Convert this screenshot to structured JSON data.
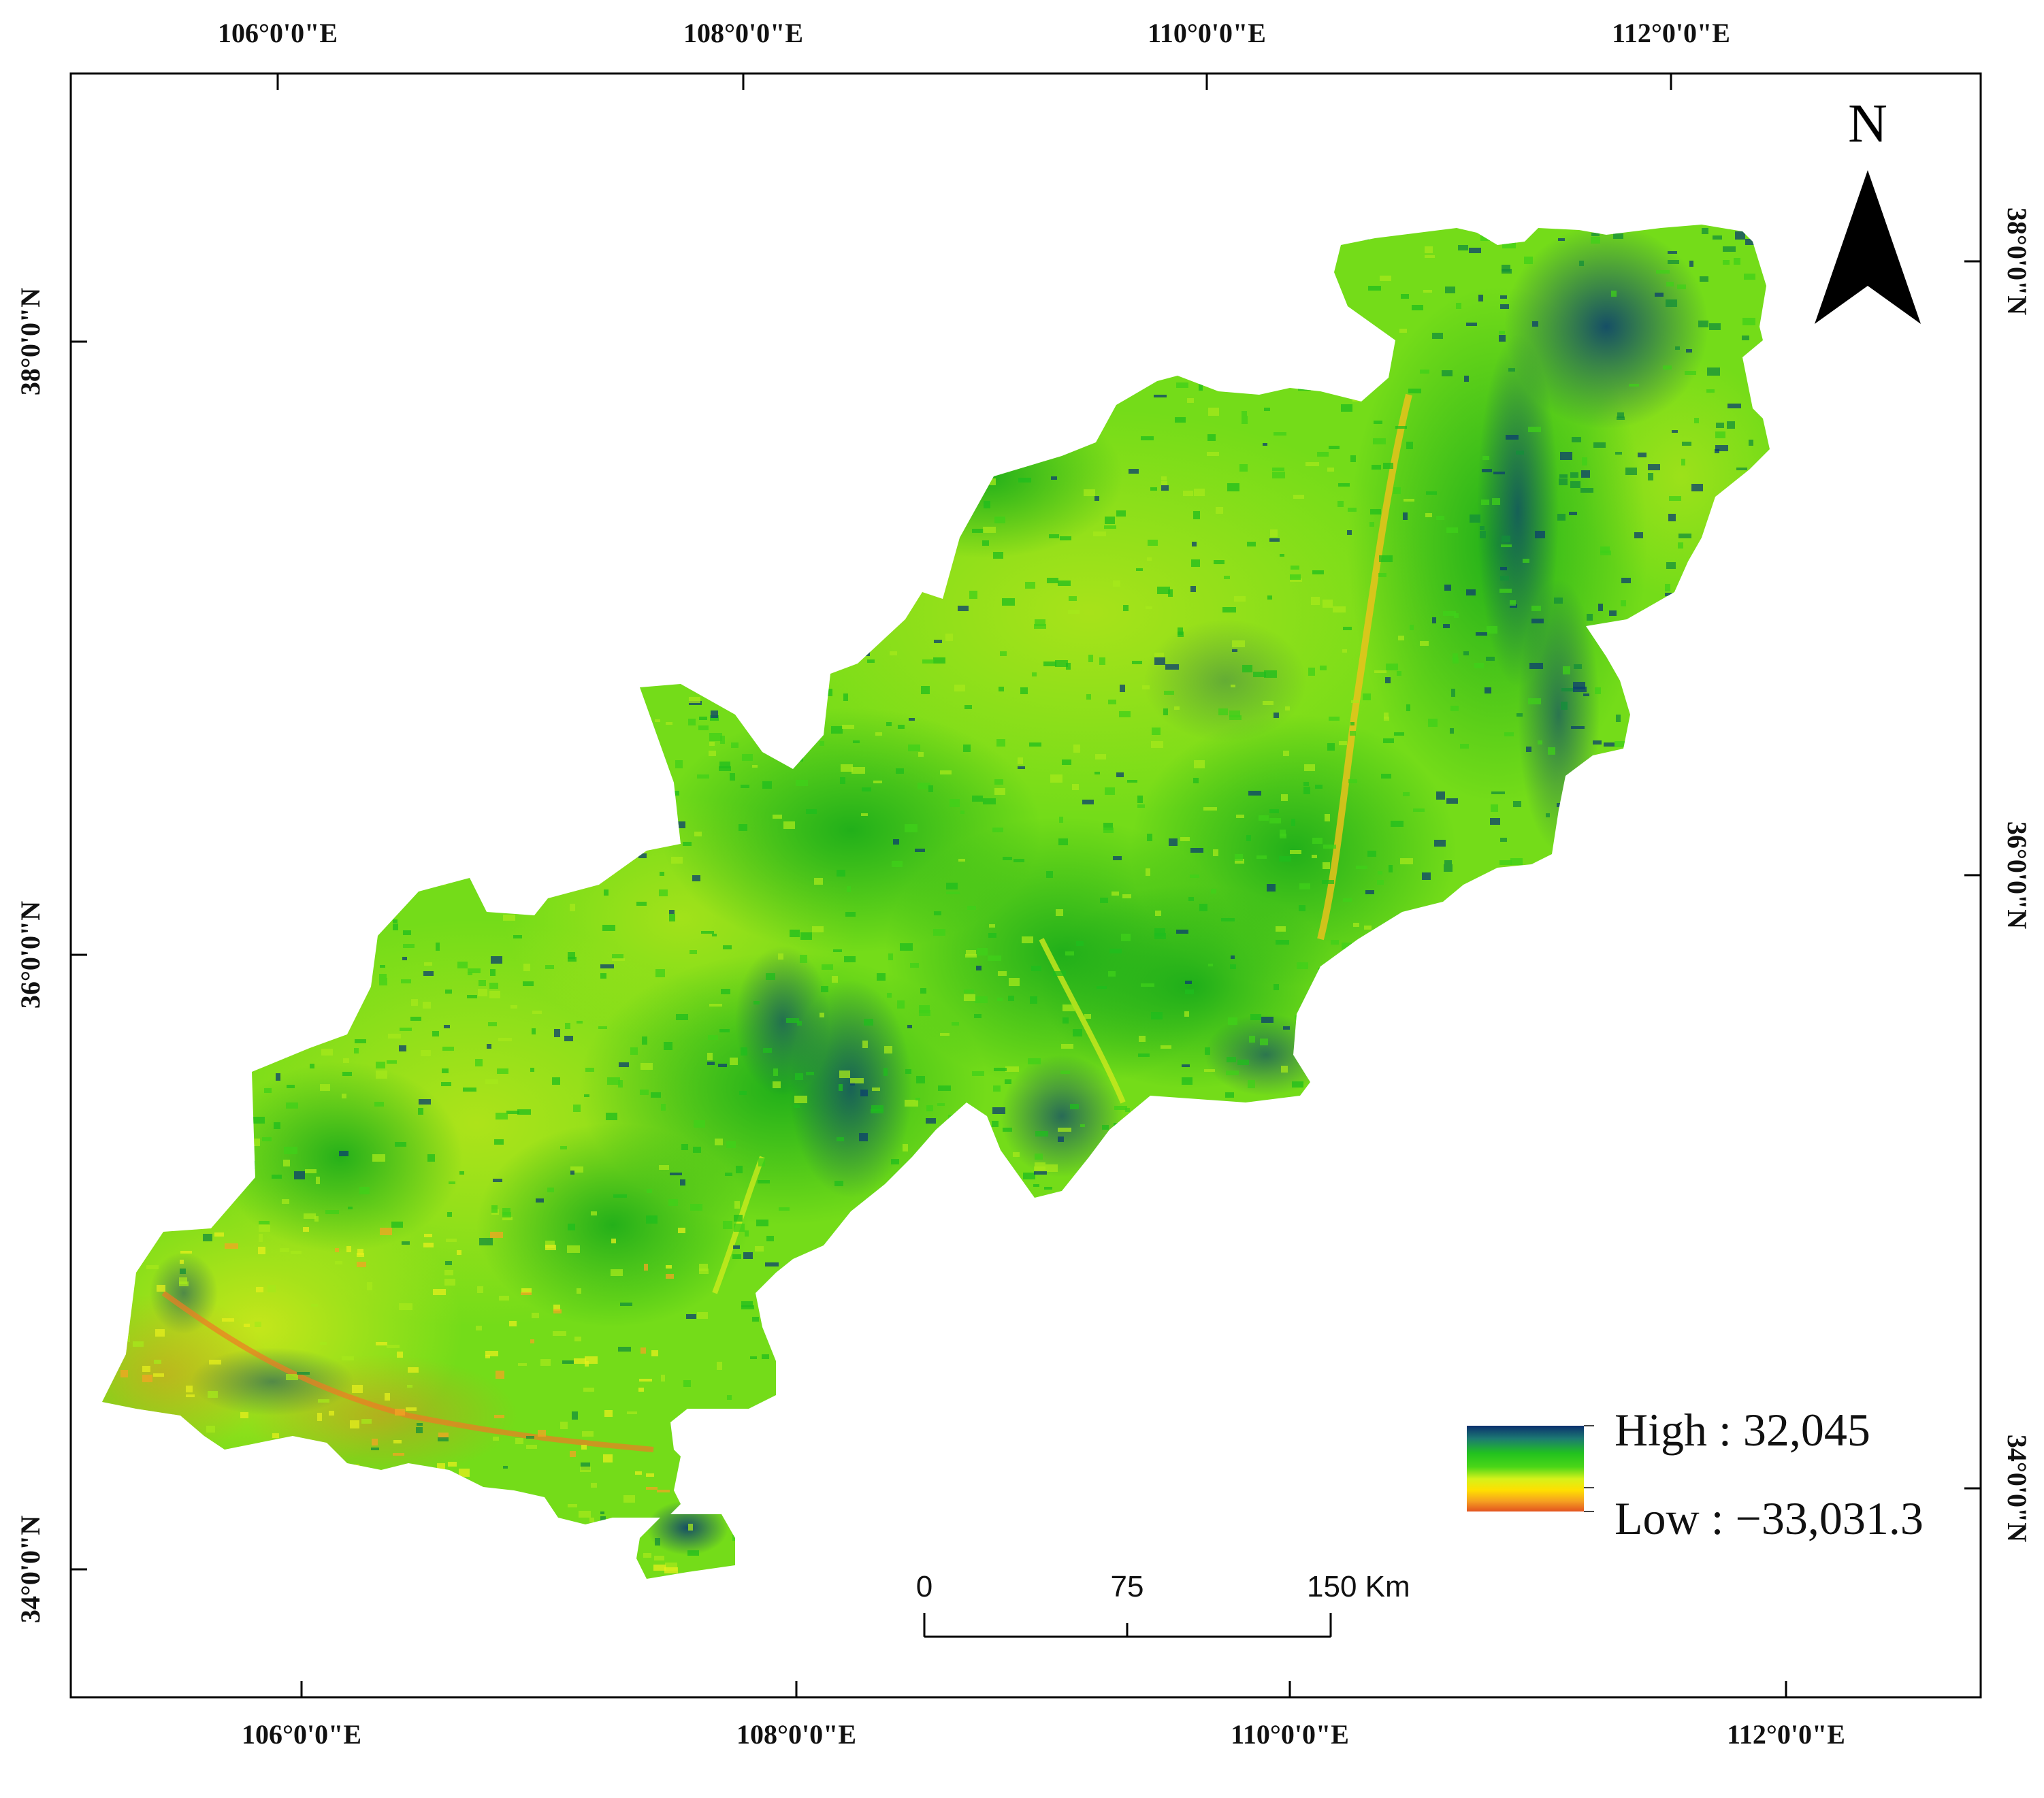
{
  "map": {
    "top_labels": [
      "106°0'0\"E",
      "108°0'0\"E",
      "110°0'0\"E",
      "112°0'0\"E"
    ],
    "bottom_labels": [
      "106°0'0\"E",
      "108°0'0\"E",
      "110°0'0\"E",
      "112°0'0\"E"
    ],
    "left_labels": [
      "38°0'0\"N",
      "36°0'0\"N",
      "34°0'0\"N"
    ],
    "right_labels": [
      "38°0'0\"N",
      "36°0'0\"N",
      "34°0'0\"N"
    ],
    "north_arrow": {
      "letter": "N",
      "icon": "north-arrow-icon"
    },
    "legend": {
      "high_label": "High : 32,045",
      "low_label": "Low : −33,031.3",
      "gradient_colors": [
        "#0b2f6e",
        "#1c7a72",
        "#22c21f",
        "#4ad618",
        "#d6f21a",
        "#ffe000",
        "#f5a021",
        "#e3531f"
      ]
    },
    "scale_bar": {
      "ticks": [
        "0",
        "75",
        "150 Km"
      ]
    },
    "colors": {
      "region_base": "#72dd19",
      "high": "#0b2f6e",
      "mid": "#1ec41c",
      "low": "#e3531f",
      "yellow": "#e9f21b"
    }
  }
}
